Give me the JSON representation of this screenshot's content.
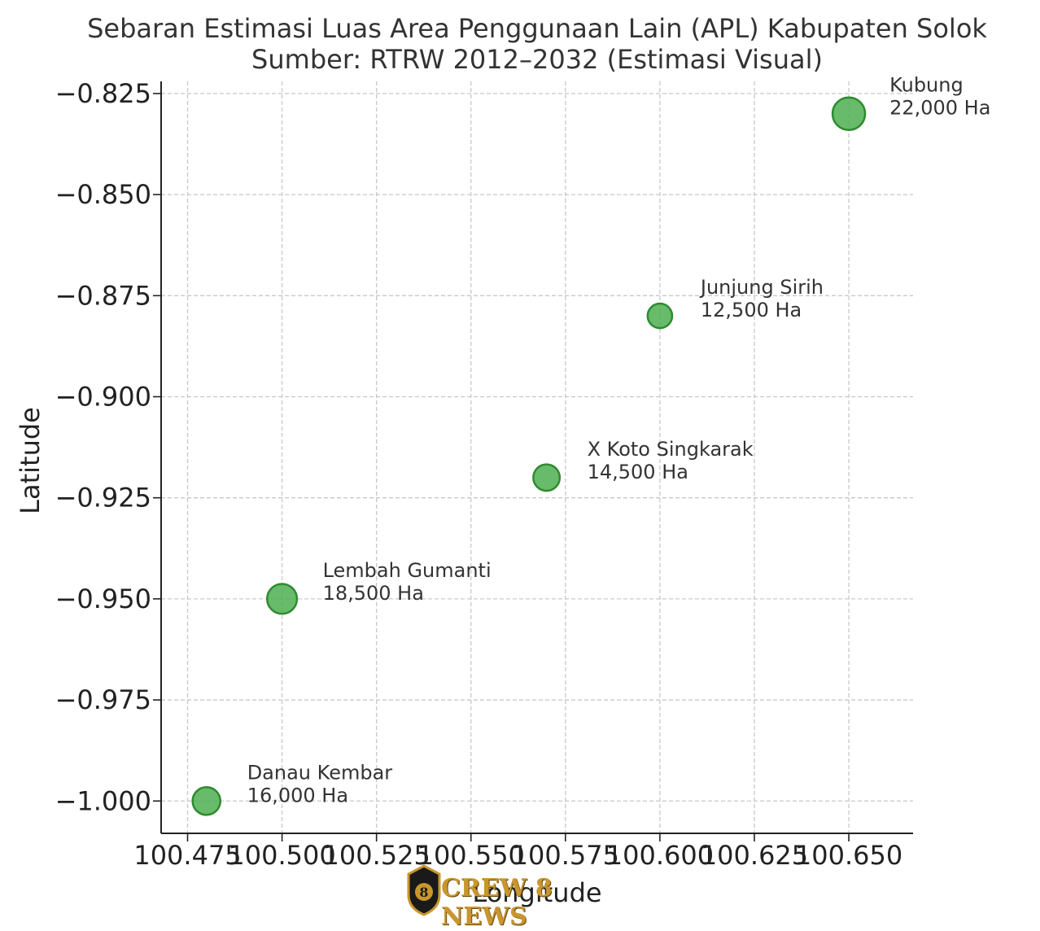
{
  "chart_data": {
    "type": "scatter",
    "title": "Sebaran Estimasi Luas Area Penggunaan Lain (APL) Kabupaten Solok",
    "subtitle": "Sumber: RTRW 2012–2032 (Estimasi Visual)",
    "xlabel": "Longitude",
    "ylabel": "Latitude",
    "xlim": [
      100.468,
      100.667
    ],
    "ylim": [
      -1.008,
      -0.822
    ],
    "xticks": [
      100.475,
      100.5,
      100.525,
      100.55,
      100.575,
      100.6,
      100.625,
      100.65
    ],
    "xtick_labels": [
      "100.475",
      "100.500",
      "100.525",
      "100.550",
      "100.575",
      "100.600",
      "100.625",
      "100.650"
    ],
    "yticks": [
      -0.825,
      -0.85,
      -0.875,
      -0.9,
      -0.925,
      -0.95,
      -0.975,
      -1.0
    ],
    "ytick_labels": [
      "−0.825",
      "−0.850",
      "−0.875",
      "−0.900",
      "−0.925",
      "−0.950",
      "−0.975",
      "−1.000"
    ],
    "grid": true,
    "marker_color": "#4caf50",
    "marker_edge_color": "#2e8b2e",
    "points": [
      {
        "name": "Kubung",
        "x": 100.65,
        "y": -0.83,
        "area_ha": 22000,
        "label": "22,000 Ha"
      },
      {
        "name": "Junjung Sirih",
        "x": 100.6,
        "y": -0.88,
        "area_ha": 12500,
        "label": "12,500 Ha"
      },
      {
        "name": "X Koto Singkarak",
        "x": 100.57,
        "y": -0.92,
        "area_ha": 14500,
        "label": "14,500 Ha"
      },
      {
        "name": "Lembah Gumanti",
        "x": 100.5,
        "y": -0.95,
        "area_ha": 18500,
        "label": "18,500 Ha"
      },
      {
        "name": "Danau Kembar",
        "x": 100.48,
        "y": -1.0,
        "area_ha": 16000,
        "label": "16,000 Ha"
      }
    ]
  },
  "watermark": {
    "text": "CREW 8 NEWS",
    "badge_text": "8"
  }
}
